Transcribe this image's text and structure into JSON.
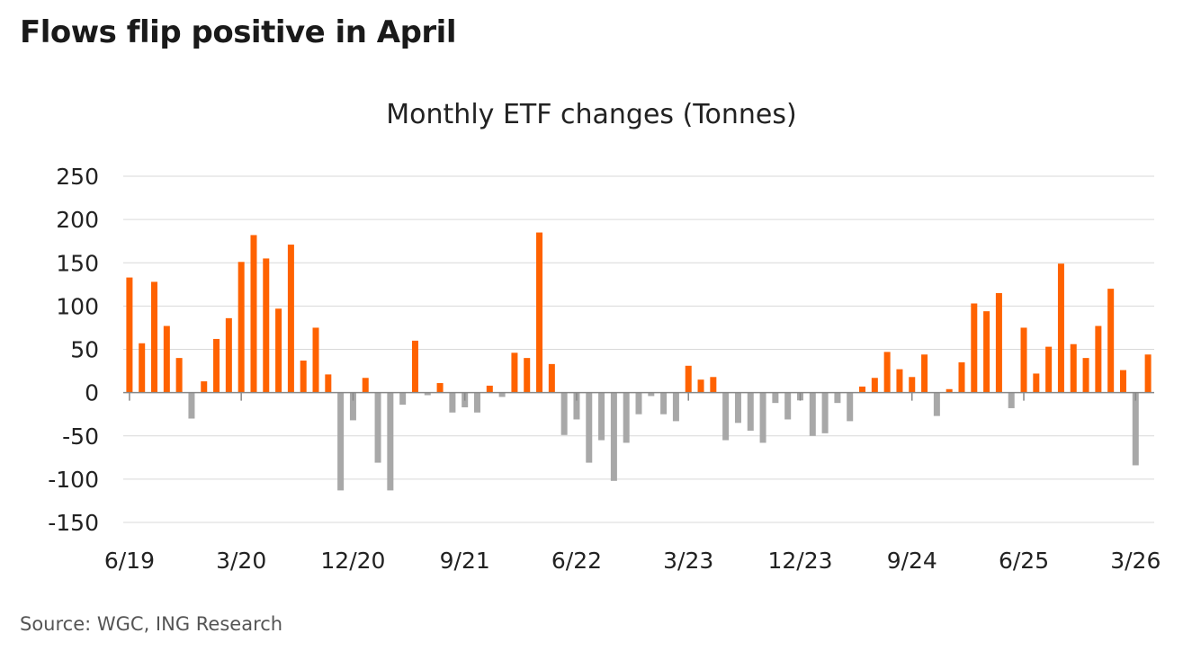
{
  "headline": "Flows flip positive in April",
  "source": "Source: WGC, ING Research",
  "colors": {
    "positive": "#FF6200",
    "negative": "#A8A8A8",
    "grid": "#D9D9D9",
    "axis": "#888888"
  },
  "chart_data": {
    "type": "bar",
    "title": "Monthly ETF changes (Tonnes)",
    "xlabel": "",
    "ylabel": "",
    "ylim": [
      -150,
      250
    ],
    "yticks": [
      250,
      200,
      150,
      100,
      50,
      0,
      -50,
      -100,
      -150
    ],
    "xtick_labels": [
      "6/19",
      "3/20",
      "12/20",
      "9/21",
      "6/22",
      "3/23",
      "12/23",
      "9/24",
      "6/25",
      "3/26"
    ],
    "grid": true,
    "categories": [
      "6/19",
      "7/19",
      "8/19",
      "9/19",
      "10/19",
      "11/19",
      "12/19",
      "1/20",
      "2/20",
      "3/20",
      "4/20",
      "5/20",
      "6/20",
      "7/20",
      "8/20",
      "9/20",
      "10/20",
      "11/20",
      "12/20",
      "1/21",
      "2/21",
      "3/21",
      "4/21",
      "5/21",
      "6/21",
      "7/21",
      "8/21",
      "9/21",
      "10/21",
      "11/21",
      "12/21",
      "1/22",
      "2/22",
      "3/22",
      "4/22",
      "5/22",
      "6/22",
      "7/22",
      "8/22",
      "9/22",
      "10/22",
      "11/22",
      "12/22",
      "1/23",
      "2/23",
      "3/23",
      "4/23",
      "5/23",
      "6/23",
      "7/23",
      "8/23",
      "9/23",
      "10/23",
      "11/23",
      "12/23",
      "1/24",
      "2/24",
      "3/24",
      "4/24",
      "5/24",
      "6/24",
      "7/24",
      "8/24",
      "9/24",
      "10/24",
      "11/24",
      "12/24",
      "1/25",
      "2/25",
      "3/25",
      "4/25",
      "5/25",
      "6/25",
      "7/25",
      "8/25",
      "9/25",
      "10/25",
      "11/25",
      "12/25",
      "1/26",
      "2/26",
      "3/26",
      "4/26"
    ],
    "values": [
      133,
      57,
      128,
      77,
      40,
      -30,
      13,
      62,
      86,
      151,
      182,
      155,
      97,
      171,
      37,
      75,
      21,
      -113,
      -32,
      17,
      -81,
      -113,
      -14,
      60,
      -3,
      11,
      -23,
      -17,
      -23,
      8,
      -5,
      46,
      40,
      185,
      33,
      -49,
      -31,
      -81,
      -55,
      -102,
      -58,
      -25,
      -4,
      -25,
      -33,
      31,
      15,
      18,
      -55,
      -35,
      -44,
      -58,
      -12,
      -31,
      -9,
      -50,
      -47,
      -12,
      -33,
      7,
      17,
      47,
      27,
      18,
      44,
      -27,
      4,
      35,
      103,
      94,
      115,
      -18,
      75,
      22,
      53,
      149,
      56,
      40,
      77,
      120,
      26,
      -84,
      44
    ]
  }
}
